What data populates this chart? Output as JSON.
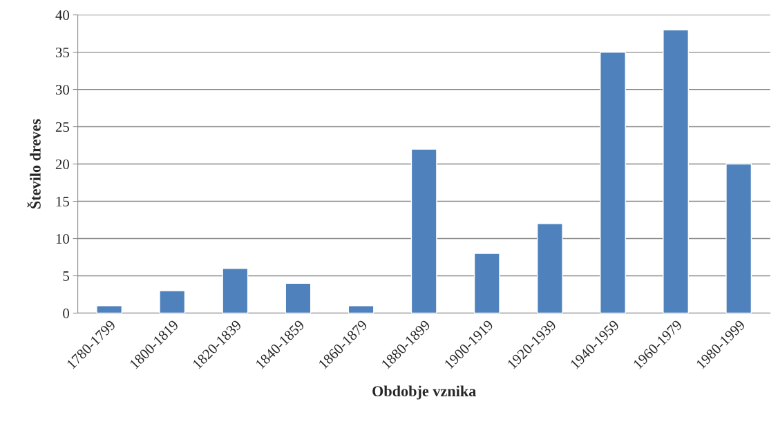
{
  "chart_data": {
    "type": "bar",
    "xlabel": "Obdobje vznika",
    "ylabel": "Število dreves",
    "categories": [
      "1780-1799",
      "1800-1819",
      "1820-1839",
      "1840-1859",
      "1860-1879",
      "1880-1899",
      "1900-1919",
      "1920-1939",
      "1940-1959",
      "1960-1979",
      "1980-1999"
    ],
    "values": [
      1,
      3,
      6,
      4,
      1,
      22,
      8,
      12,
      35,
      38,
      20
    ],
    "color": "#4f81bd",
    "ylim": [
      0,
      40
    ],
    "yticks": [
      0,
      5,
      10,
      15,
      20,
      25,
      30,
      35,
      40
    ],
    "grid": "y"
  }
}
